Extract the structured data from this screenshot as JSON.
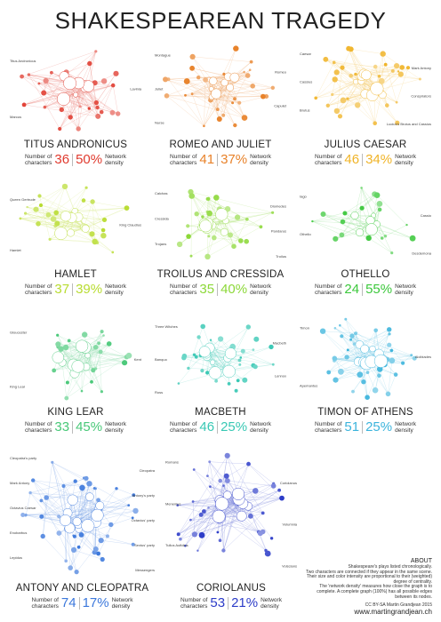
{
  "title": "SHAKESPEAREAN TRAGEDY",
  "stat_labels": {
    "characters": [
      "Number of",
      "characters"
    ],
    "density": [
      "Network",
      "density"
    ]
  },
  "plays": [
    {
      "title": "TITUS ANDRONICUS",
      "characters": "36",
      "density": "50%",
      "color": "#e03a2e",
      "names": [
        "Titus Andronicus",
        "Lavinia",
        "Marcus"
      ]
    },
    {
      "title": "ROMEO AND JULIET",
      "characters": "41",
      "density": "37%",
      "color": "#e8822a",
      "names": [
        "Montague",
        "Romeo",
        "Juliet",
        "Capulet",
        "Nurse"
      ]
    },
    {
      "title": "JULIUS CAESAR",
      "characters": "46",
      "density": "34%",
      "color": "#f0b428",
      "names": [
        "Caesar",
        "Mark Antony",
        "Cassius",
        "Conspirators",
        "Brutus",
        "Lucius's Brutus and Cassius"
      ]
    },
    {
      "title": "HAMLET",
      "characters": "37",
      "density": "39%",
      "color": "#b8dc30",
      "names": [
        "Queen Gertrude",
        "King Claudius",
        "Hamlet"
      ]
    },
    {
      "title": "TROILUS AND CRESSIDA",
      "characters": "35",
      "density": "40%",
      "color": "#8cd838",
      "names": [
        "Calchas",
        "Diomedes",
        "Cressida",
        "Pandarus",
        "Trojans",
        "Troilus"
      ]
    },
    {
      "title": "OTHELLO",
      "characters": "24",
      "density": "55%",
      "color": "#3cc83c",
      "names": [
        "Iago",
        "Cassio",
        "Othello",
        "Desdemona"
      ]
    },
    {
      "title": "KING LEAR",
      "characters": "33",
      "density": "45%",
      "color": "#48c878",
      "names": [
        "Gloucester",
        "Kent",
        "King Lear"
      ]
    },
    {
      "title": "MACBETH",
      "characters": "46",
      "density": "25%",
      "color": "#38c8b4",
      "names": [
        "Three Witches",
        "Macbeth",
        "Banquo",
        "Lennox",
        "Ross"
      ]
    },
    {
      "title": "TIMON OF ATHENS",
      "characters": "51",
      "density": "25%",
      "color": "#3cb4dc",
      "names": [
        "Timon",
        "Alcibiades",
        "Apemantus"
      ]
    },
    {
      "title": "ANTONY AND CLEOPATRA",
      "characters": "74",
      "density": "17%",
      "color": "#3c78dc",
      "names": [
        "Cleopatra's party",
        "Cleopatra",
        "Mark Antony",
        "Antony's party",
        "Octavius Caesar",
        "Octavius' party",
        "Enobarbus",
        "Sextus' party",
        "Lepidus",
        "Messengers"
      ]
    },
    {
      "title": "CORIOLANUS",
      "characters": "53",
      "density": "21%",
      "color": "#2c3cc8",
      "names": [
        "Romans",
        "Coriolanus",
        "Menenius",
        "Volumnia",
        "Tullus Aufidius",
        "Volscians"
      ]
    }
  ],
  "about": {
    "heading": "ABOUT",
    "lines": [
      "Shakespeare's plays listed chronologically.",
      "Two characters are connected if they appear in the same scene.",
      "Their size and color intensity are proportional to their (weighted)",
      "degree of centrality.",
      "The 'network density' measures how close the graph is to",
      "complete. A complete graph (100%) has all possible edges",
      "between its nodes."
    ],
    "credit": "CC BY-SA Martin Grandjean 2015",
    "website": "www.martingrandjean.ch"
  }
}
